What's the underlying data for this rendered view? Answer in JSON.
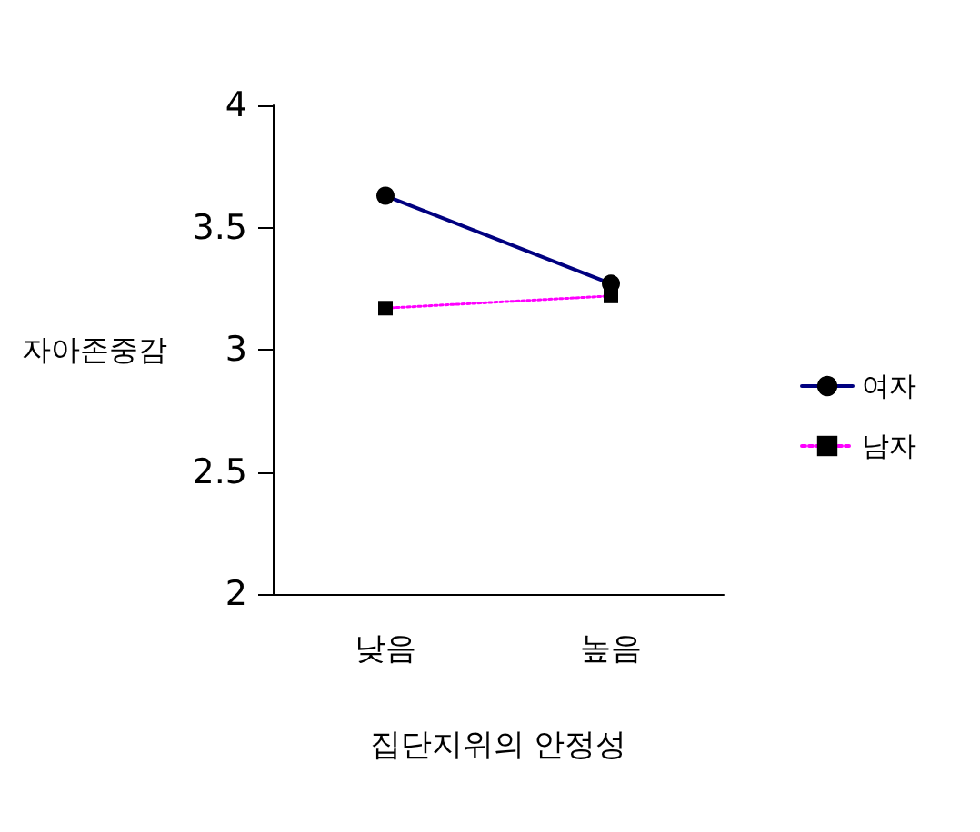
{
  "chart_data": {
    "type": "line",
    "xlabel": "집단지위의 안정성",
    "ylabel": "자아존중감",
    "categories": [
      "낮음",
      "높음"
    ],
    "series": [
      {
        "name": "여자",
        "color": "#000080",
        "values": [
          3.63,
          3.27
        ],
        "marker": "circle",
        "line_style": "solid"
      },
      {
        "name": "남자",
        "color": "#ff00ff",
        "values": [
          3.17,
          3.22
        ],
        "marker": "square",
        "line_style": "dotted"
      }
    ],
    "ylim": [
      2,
      4
    ],
    "yticks": [
      2,
      2.5,
      3,
      3.5,
      4
    ],
    "grid": false,
    "legend": "right"
  }
}
